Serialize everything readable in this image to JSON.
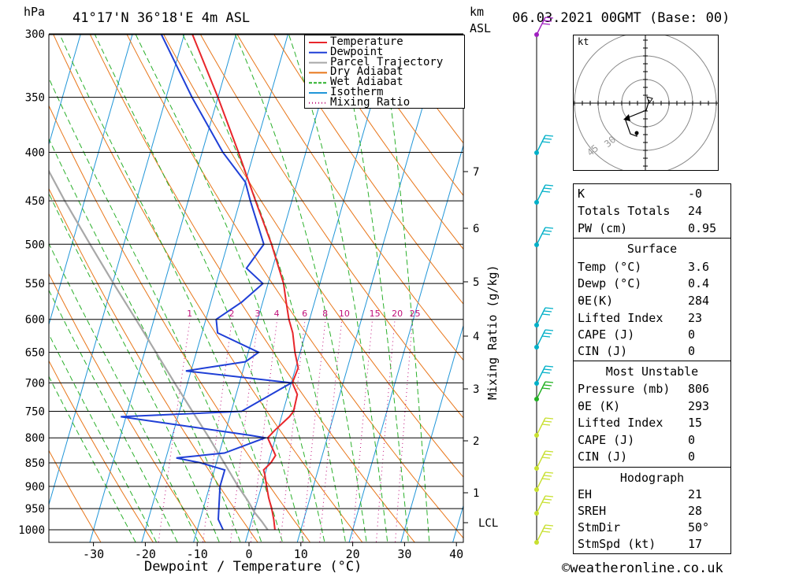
{
  "header": {
    "hpa_label": "hPa",
    "location": "41°17'N  36°18'E  4m  ASL",
    "km_label": "km",
    "asl_label": "ASL",
    "datetime": "06.03.2021  00GMT  (Base: 00)"
  },
  "chart_data": {
    "type": "skew-t",
    "xlabel": "Dewpoint / Temperature (°C)",
    "ylabel": "hPa",
    "right_axis_label": "Mixing Ratio (g/kg)",
    "x_ticks": [
      -30,
      -20,
      -10,
      0,
      10,
      20,
      30,
      40
    ],
    "pressure_levels": [
      300,
      350,
      400,
      450,
      500,
      550,
      600,
      650,
      700,
      750,
      800,
      850,
      900,
      950,
      1000
    ],
    "km_ticks": [
      1,
      2,
      3,
      4,
      5,
      6,
      7
    ],
    "lcl_label": "LCL",
    "mixing_ratios": [
      1,
      2,
      3,
      4,
      6,
      8,
      10,
      15,
      20,
      25
    ],
    "legend": [
      {
        "name": "Temperature",
        "color": "#e8262b",
        "style": "solid"
      },
      {
        "name": "Dewpoint",
        "color": "#1f3fd6",
        "style": "solid"
      },
      {
        "name": "Parcel Trajectory",
        "color": "#a8a8a8",
        "style": "solid"
      },
      {
        "name": "Dry Adiabat",
        "color": "#e8761a",
        "style": "solid"
      },
      {
        "name": "Wet Adiabat",
        "color": "#2bb02b",
        "style": "dashed"
      },
      {
        "name": "Isotherm",
        "color": "#2196d8",
        "style": "solid"
      },
      {
        "name": "Mixing Ratio",
        "color": "#c0107a",
        "style": "dotted"
      }
    ],
    "temperature": [
      [
        1000,
        5.0
      ],
      [
        975,
        4.2
      ],
      [
        950,
        3.2
      ],
      [
        925,
        2.0
      ],
      [
        900,
        1.0
      ],
      [
        875,
        0.0
      ],
      [
        865,
        -0.5
      ],
      [
        850,
        0.5
      ],
      [
        835,
        1.0
      ],
      [
        800,
        -1.5
      ],
      [
        785,
        -0.5
      ],
      [
        760,
        1.5
      ],
      [
        750,
        2.0
      ],
      [
        720,
        1.8
      ],
      [
        700,
        0.2
      ],
      [
        675,
        0.5
      ],
      [
        650,
        -1.0
      ],
      [
        620,
        -2.5
      ],
      [
        600,
        -4.0
      ],
      [
        575,
        -5.5
      ],
      [
        550,
        -7.0
      ],
      [
        500,
        -11.5
      ],
      [
        450,
        -17.0
      ],
      [
        400,
        -23.0
      ],
      [
        350,
        -30.0
      ],
      [
        300,
        -38.5
      ]
    ],
    "dewpoint": [
      [
        1000,
        -5.0
      ],
      [
        975,
        -6.5
      ],
      [
        950,
        -7.0
      ],
      [
        900,
        -8.0
      ],
      [
        865,
        -8.0
      ],
      [
        850,
        -13.0
      ],
      [
        840,
        -18.0
      ],
      [
        830,
        -9.0
      ],
      [
        800,
        -2.0
      ],
      [
        795,
        -5.0
      ],
      [
        760,
        -31.0
      ],
      [
        750,
        -8.0
      ],
      [
        700,
        0.0
      ],
      [
        680,
        -21.0
      ],
      [
        665,
        -10.0
      ],
      [
        650,
        -8.0
      ],
      [
        620,
        -17.0
      ],
      [
        600,
        -18.0
      ],
      [
        575,
        -14.0
      ],
      [
        550,
        -11.0
      ],
      [
        530,
        -15.0
      ],
      [
        500,
        -13.0
      ],
      [
        450,
        -18.0
      ],
      [
        430,
        -20.0
      ],
      [
        400,
        -26.0
      ],
      [
        350,
        -35.0
      ],
      [
        300,
        -44.5
      ]
    ],
    "parcel": [
      [
        1000,
        3.6
      ],
      [
        980,
        2.0
      ],
      [
        960,
        0.2
      ],
      [
        930,
        -2.0
      ],
      [
        900,
        -4.5
      ],
      [
        850,
        -8.5
      ],
      [
        800,
        -12.8
      ],
      [
        750,
        -17.5
      ],
      [
        700,
        -22.5
      ],
      [
        650,
        -27.8
      ],
      [
        600,
        -33.5
      ],
      [
        550,
        -39.8
      ],
      [
        500,
        -46.5
      ],
      [
        450,
        -53.8
      ],
      [
        400,
        -61.5
      ],
      [
        350,
        -70.0
      ],
      [
        300,
        -80.0
      ]
    ]
  },
  "hodograph": {
    "unit": "kt",
    "ring_labels": [
      "30",
      "45"
    ]
  },
  "indices": {
    "k_label": "K",
    "k": "-0",
    "tt_label": "Totals Totals",
    "tt": "24",
    "pw_label": "PW (cm)",
    "pw": "0.95"
  },
  "surface": {
    "title": "Surface",
    "temp_label": "Temp (°C)",
    "temp": "3.6",
    "dewp_label": "Dewp (°C)",
    "dewp": "0.4",
    "theta_label": "θE(K)",
    "theta": "284",
    "li_label": "Lifted Index",
    "li": "23",
    "cape_label": "CAPE (J)",
    "cape": "0",
    "cin_label": "CIN (J)",
    "cin": "0"
  },
  "most_unstable": {
    "title": "Most Unstable",
    "pressure_label": "Pressure (mb)",
    "pressure": "806",
    "theta_label": "θE (K)",
    "theta": "293",
    "li_label": "Lifted Index",
    "li": "15",
    "cape_label": "CAPE (J)",
    "cape": "0",
    "cin_label": "CIN (J)",
    "cin": "0"
  },
  "hodograph_stats": {
    "title": "Hodograph",
    "eh_label": "EH",
    "eh": "21",
    "sreh_label": "SREH",
    "sreh": "28",
    "stmdir_label": "StmDir",
    "stmdir": "50°",
    "stmspd_label": "StmSpd (kt)",
    "stmspd": "17"
  },
  "footer": {
    "copyright": "©weatheronline.co.uk"
  },
  "colors": {
    "wind_upper": "#00b0c8",
    "wind_lower": "#c8e030",
    "wind_top": "#a020c0"
  }
}
